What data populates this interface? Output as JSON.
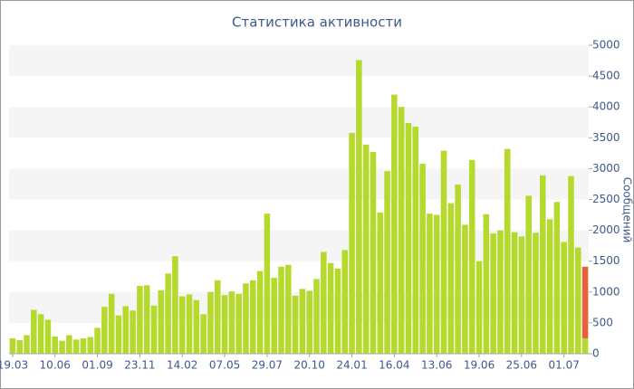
{
  "chart_data": {
    "type": "bar",
    "title": "Статистика активности",
    "y_label": "Сообщений",
    "categories": [
      "19.03",
      null,
      null,
      null,
      null,
      null,
      "10.06",
      null,
      null,
      null,
      null,
      null,
      "01.09",
      null,
      null,
      null,
      null,
      null,
      "23.11",
      null,
      null,
      null,
      null,
      null,
      "14.02",
      null,
      null,
      null,
      null,
      null,
      "07.05",
      null,
      null,
      null,
      null,
      null,
      "29.07",
      null,
      null,
      null,
      null,
      null,
      "20.10",
      null,
      null,
      null,
      null,
      null,
      "24.01",
      null,
      null,
      null,
      null,
      null,
      "16.04",
      null,
      null,
      null,
      null,
      null,
      "13.06",
      null,
      null,
      null,
      null,
      null,
      "19.06",
      null,
      null,
      null,
      null,
      null,
      "25.06",
      null,
      null,
      null,
      null,
      null,
      "01.07",
      null,
      null,
      null
    ],
    "series": [
      {
        "color": "#b5d92c",
        "values": [
          250,
          220,
          300,
          710,
          640,
          550,
          280,
          210,
          300,
          230,
          250,
          270,
          420,
          760,
          970,
          620,
          770,
          700,
          1100,
          1110,
          780,
          1030,
          1300,
          1580,
          930,
          960,
          870,
          640,
          1000,
          1190,
          950,
          1010,
          970,
          1140,
          1190,
          1340,
          2270,
          1230,
          1410,
          1440,
          940,
          1050,
          1020,
          1210,
          1650,
          1470,
          1380,
          1680,
          3580,
          4760,
          3390,
          3270,
          2290,
          2960,
          4200,
          4000,
          3740,
          3680,
          3080,
          2270,
          2250,
          3290,
          2440,
          2740,
          2090,
          3140,
          1500,
          2260,
          1950,
          2000,
          3320,
          1970,
          1900,
          2560,
          1960,
          2890,
          2180,
          2460,
          1810,
          2880,
          1720,
          250
        ]
      },
      {
        "color": "#e8603c",
        "values": [
          null,
          null,
          null,
          null,
          null,
          null,
          null,
          null,
          null,
          null,
          null,
          null,
          null,
          null,
          null,
          null,
          null,
          null,
          null,
          null,
          null,
          null,
          null,
          null,
          null,
          null,
          null,
          null,
          null,
          null,
          null,
          null,
          null,
          null,
          null,
          null,
          null,
          null,
          null,
          null,
          null,
          null,
          null,
          null,
          null,
          null,
          null,
          null,
          null,
          null,
          null,
          null,
          null,
          null,
          null,
          null,
          null,
          null,
          null,
          null,
          null,
          null,
          null,
          null,
          null,
          null,
          null,
          null,
          null,
          null,
          null,
          null,
          null,
          null,
          null,
          null,
          null,
          null,
          null,
          null,
          null,
          1160
        ]
      }
    ],
    "ylim": [
      0,
      5000
    ],
    "yticks": [
      0,
      500,
      1000,
      1500,
      2000,
      2500,
      3000,
      3500,
      4000,
      4500,
      5000
    ],
    "stacked": true,
    "grid": "bands"
  }
}
